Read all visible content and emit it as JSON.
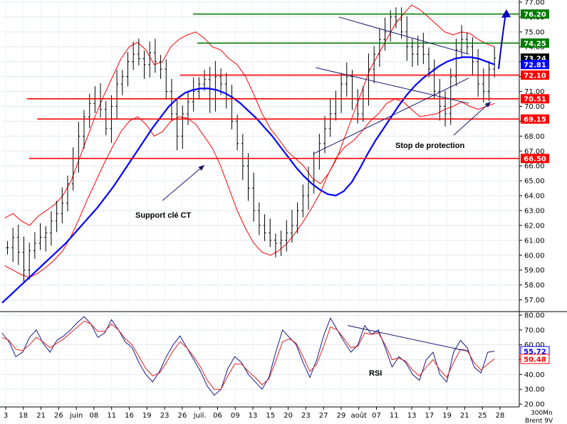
{
  "chart_data": [
    {
      "type": "ohlc",
      "title": "",
      "ylim": [
        56.5,
        77.0
      ],
      "y_ticks": [
        57,
        58,
        59,
        60,
        61,
        62,
        63,
        64,
        65,
        66,
        67,
        68,
        69,
        70,
        71,
        72,
        73,
        74,
        75,
        76,
        77
      ],
      "y_tick_labels": [
        "57.00",
        "58.00",
        "59.00",
        "60.00",
        "61.00",
        "62.00",
        "63.00",
        "64.00",
        "65.00",
        "66.00",
        "67.00",
        "68.00",
        "69.00",
        "70.00",
        "71.00",
        "72.00",
        "73.00",
        "74.00",
        "75.00",
        "76.00",
        "77.00"
      ],
      "x_tick_labels": [
        "3",
        "18",
        "21",
        "26",
        "juin",
        "08",
        "11",
        "16",
        "19",
        "23",
        "26",
        "juil.",
        "06",
        "09",
        "13",
        "15",
        "20",
        "23",
        "27",
        "29",
        "août",
        "07",
        "11",
        "13",
        "17",
        "19",
        "21",
        "25",
        "28"
      ],
      "series": [
        {
          "name": "price",
          "values": [
            60.5,
            61.2,
            60.2,
            59.0,
            60.3,
            60.8,
            61.2,
            61.5,
            62.3,
            62.8,
            63.5,
            64.8,
            66.5,
            68.0,
            69.3,
            70.2,
            70.5,
            69.8,
            68.5,
            70.0,
            71.5,
            72.0,
            73.0,
            73.5,
            73.2,
            72.8,
            73.6,
            73.0,
            72.5,
            71.0,
            69.5,
            68.0,
            69.5,
            70.3,
            71.0,
            71.5,
            71.8,
            70.5,
            72.0,
            71.5,
            70.5,
            69.0,
            67.5,
            66.0,
            64.5,
            63.0,
            62.0,
            61.5,
            61.0,
            60.8,
            61.0,
            61.5,
            62.0,
            63.0,
            64.0,
            65.0,
            66.5,
            67.5,
            68.5,
            69.5,
            70.5,
            71.5,
            72.0,
            70.5,
            69.5,
            70.5,
            72.5,
            73.5,
            74.5,
            75.0,
            76.0,
            75.8,
            75.0,
            74.0,
            73.5,
            74.0,
            73.5,
            72.5,
            71.0,
            70.0,
            69.5,
            72.0,
            73.8,
            74.5,
            74.0,
            73.0,
            71.5,
            71.0,
            72.5,
            73.24
          ]
        },
        {
          "name": "sma",
          "values": [
            56.8,
            57.3,
            57.8,
            58.3,
            58.8,
            59.3,
            59.8,
            60.3,
            60.8,
            61.4,
            62.0,
            62.6,
            63.2,
            63.9,
            64.6,
            65.4,
            66.2,
            67.0,
            67.8,
            68.6,
            69.3,
            70.0,
            70.5,
            70.9,
            71.1,
            71.2,
            71.2,
            71.1,
            70.9,
            70.6,
            70.2,
            69.7,
            69.2,
            68.6,
            68.0,
            67.3,
            66.6,
            65.9,
            65.3,
            64.8,
            64.4,
            64.1,
            64.0,
            64.3,
            64.9,
            65.8,
            66.8,
            67.7,
            68.5,
            69.3,
            70.1,
            70.8,
            71.4,
            71.9,
            72.3,
            72.7,
            73.0,
            73.2,
            73.3,
            73.3,
            73.2,
            73.0,
            72.81
          ]
        },
        {
          "name": "bollinger_upper",
          "values": [
            62.5,
            62.8,
            62.3,
            62.0,
            62.6,
            63.0,
            63.4,
            64.0,
            65.0,
            66.5,
            68.0,
            69.5,
            70.8,
            72.0,
            73.2,
            74.0,
            74.3,
            73.8,
            72.8,
            73.0,
            74.0,
            74.5,
            74.8,
            75.0,
            74.6,
            74.0,
            73.8,
            73.2,
            72.8,
            72.0,
            70.8,
            69.5,
            68.5,
            67.8,
            67.0,
            66.5,
            66.0,
            65.2,
            64.8,
            65.5,
            66.5,
            68.0,
            69.5,
            71.0,
            72.5,
            73.5,
            74.5,
            75.5,
            76.2,
            76.8,
            76.5,
            76.0,
            75.5,
            75.0,
            74.8,
            75.0,
            74.9,
            74.5,
            74.2,
            74.0
          ]
        },
        {
          "name": "bollinger_lower",
          "values": [
            59.3,
            59.0,
            58.7,
            58.5,
            58.8,
            59.2,
            59.7,
            60.3,
            61.3,
            62.5,
            63.8,
            65.0,
            66.2,
            67.3,
            68.3,
            69.0,
            69.3,
            68.8,
            68.0,
            68.3,
            69.0,
            69.3,
            69.2,
            68.8,
            68.0,
            67.2,
            66.0,
            64.5,
            63.0,
            61.8,
            60.8,
            60.2,
            60.0,
            60.3,
            60.8,
            61.5,
            62.3,
            63.2,
            64.2,
            65.5,
            66.6,
            67.3,
            67.7,
            68.3,
            69.0,
            69.5,
            70.2,
            70.5,
            70.3,
            69.8,
            69.3,
            69.4,
            69.5,
            69.8,
            70.0,
            70.3,
            70.0,
            69.8,
            70.0,
            70.2
          ]
        }
      ],
      "horizontal_levels": [
        {
          "value": 76.2,
          "label": "76.20",
          "color": "#007a00"
        },
        {
          "value": 74.25,
          "label": "74.25",
          "color": "#007a00"
        },
        {
          "value": 72.1,
          "label": "72.10",
          "color": "#ff0000"
        },
        {
          "value": 70.51,
          "label": "70.51",
          "color": "#ff0000"
        },
        {
          "value": 69.15,
          "label": "69.15",
          "color": "#ff0000"
        },
        {
          "value": 66.5,
          "label": "66.50",
          "color": "#ff0000"
        }
      ],
      "value_tags": [
        {
          "value": 73.24,
          "label": "73.24",
          "color": "#000000"
        },
        {
          "value": 72.81,
          "label": "72.81",
          "color": "#0000ff"
        }
      ],
      "annotations": [
        {
          "text": "Support clé CT"
        },
        {
          "text": "Stop de protection"
        }
      ],
      "trendlines": [
        {
          "from": [
            0.653,
            76.0
          ],
          "to": [
            0.905,
            73.5
          ]
        },
        {
          "from": [
            0.608,
            72.6
          ],
          "to": [
            0.905,
            70.2
          ]
        },
        {
          "from": [
            0.603,
            66.8
          ],
          "to": [
            0.905,
            71.9
          ]
        }
      ],
      "colors": {
        "price": "#000000",
        "sma": "#0000ff",
        "bollinger": "#ff0000",
        "support": "#ff0000",
        "resistance": "#007a00",
        "trend": "#1a1a6e"
      }
    },
    {
      "type": "line",
      "title": "RSI",
      "ylim": [
        20,
        80
      ],
      "y_ticks": [
        20,
        30,
        40,
        50,
        60,
        70,
        80
      ],
      "y_tick_labels": [
        "20.00",
        "30.00",
        "40.00",
        "50.00",
        "60.00",
        "70.00",
        "80.00"
      ],
      "series": [
        {
          "name": "rsi",
          "values": [
            68,
            62,
            52,
            55,
            65,
            70,
            61,
            55,
            63,
            66,
            70,
            75,
            79,
            74,
            65,
            68,
            77,
            70,
            62,
            58,
            48,
            40,
            35,
            42,
            52,
            60,
            66,
            58,
            50,
            42,
            32,
            26,
            30,
            44,
            52,
            48,
            40,
            35,
            30,
            38,
            55,
            70,
            65,
            60,
            48,
            38,
            50,
            66,
            78,
            70,
            62,
            55,
            60,
            73,
            67,
            70,
            58,
            45,
            52,
            48,
            40,
            36,
            50,
            55,
            40,
            35,
            55,
            63,
            58,
            45,
            41,
            55,
            55.72
          ]
        },
        {
          "name": "rsi_signal",
          "values": [
            65,
            63,
            57,
            56,
            60,
            65,
            62,
            58,
            61,
            64,
            68,
            72,
            76,
            74,
            69,
            69,
            74,
            70,
            64,
            60,
            52,
            44,
            39,
            41,
            48,
            56,
            62,
            58,
            52,
            45,
            36,
            30,
            30,
            39,
            47,
            47,
            42,
            38,
            33,
            37,
            49,
            62,
            64,
            61,
            52,
            42,
            47,
            59,
            72,
            70,
            64,
            58,
            59,
            68,
            67,
            68,
            60,
            50,
            51,
            49,
            43,
            39,
            45,
            50,
            43,
            38,
            48,
            57,
            56,
            48,
            43,
            47,
            50.48
          ]
        }
      ],
      "value_tags": [
        {
          "value": 55.72,
          "label": "55.72",
          "color": "#0000ff"
        },
        {
          "value": 50.48,
          "label": "50.48",
          "color": "#ff0000"
        }
      ],
      "trendlines": [
        {
          "from": [
            0.67,
            73.0
          ],
          "to": [
            0.905,
            55.5
          ]
        }
      ]
    }
  ],
  "footer": {
    "line1": "300Mn",
    "line2": "Brent 9V"
  }
}
